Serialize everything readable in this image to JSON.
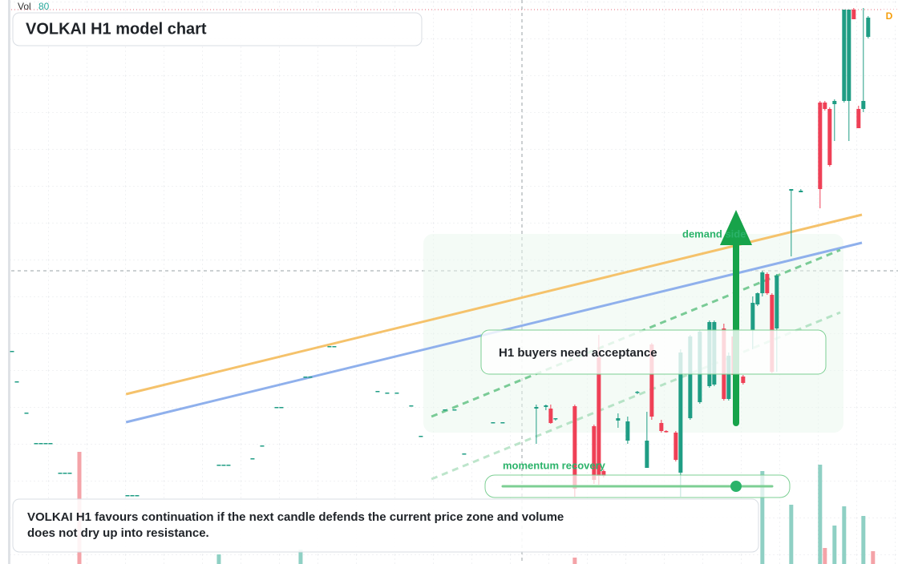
{
  "chart_data": {
    "type": "candlestick",
    "title": "VOLKAI H1 model chart",
    "volume_label": "Vol",
    "volume_value": 80,
    "badge": "D",
    "annotations": {
      "zone": "demand side",
      "box": "H1 buyers need acceptance",
      "slider": "momentum recovery",
      "note": "VOLKAI H1 favours continuation if the next candle defends the current price zone and volume does not dry up into resistance."
    },
    "xlim": [
      -2.5,
      184.2
    ],
    "ylim": [
      0,
      70.4
    ],
    "up_color": "#1f9d84",
    "down_color": "#ef4056",
    "t": [
      0,
      1,
      3,
      5,
      6,
      7,
      8,
      10,
      11,
      12,
      24,
      25,
      26,
      43,
      44,
      45,
      50,
      52,
      55,
      56,
      61,
      62,
      66,
      67,
      76,
      78,
      80,
      83,
      85,
      90,
      92,
      94,
      100,
      102,
      109,
      111,
      112,
      113,
      117,
      121,
      122,
      123,
      126,
      128,
      130,
      132,
      133,
      135,
      136,
      138,
      139,
      141,
      143,
      145,
      146,
      148,
      149,
      150,
      152,
      154,
      155,
      156,
      157,
      158,
      159,
      162,
      164,
      168,
      169,
      170,
      171,
      173,
      174,
      175,
      176,
      177,
      178
    ],
    "open": [
      26.6,
      22.8,
      18.9,
      15.1,
      15.1,
      15.1,
      15.1,
      11.4,
      11.4,
      11.4,
      8.6,
      8.6,
      8.6,
      12.4,
      12.4,
      12.4,
      13.2,
      14.8,
      19.6,
      19.6,
      23.4,
      23.4,
      27.2,
      27.2,
      21.6,
      21.4,
      21.4,
      19.8,
      16.0,
      19.3,
      19.3,
      13.8,
      17.7,
      17.7,
      19.4,
      19.6,
      19.4,
      18.1,
      19.7,
      17.2,
      25.8,
      11.6,
      17.9,
      15.4,
      21.4,
      12.0,
      27.4,
      17.6,
      16.6,
      16.4,
      11.4,
      18.2,
      20.2,
      22.2,
      22.4,
      29.4,
      20.6,
      28.4,
      23.4,
      29.2,
      32.4,
      33.8,
      36.2,
      33.6,
      29.4,
      46.6,
      46.4,
      57.6,
      57.6,
      56.8,
      57.4,
      57.8,
      57.8,
      69.2,
      56.8,
      56.8,
      65.8
    ],
    "high": [
      26.6,
      22.8,
      18.9,
      15.1,
      15.1,
      15.1,
      15.1,
      11.4,
      11.4,
      11.4,
      8.6,
      8.6,
      8.6,
      12.4,
      12.4,
      12.4,
      13.2,
      14.8,
      19.6,
      19.6,
      23.4,
      23.4,
      27.2,
      27.2,
      21.6,
      21.4,
      21.4,
      19.8,
      16.0,
      19.3,
      19.3,
      13.8,
      17.7,
      17.7,
      19.9,
      19.9,
      19.9,
      18.2,
      19.9,
      17.4,
      28.6,
      11.8,
      18.8,
      18.4,
      21.6,
      19.0,
      27.6,
      18.0,
      16.7,
      16.6,
      26.8,
      28.6,
      29.2,
      30.4,
      30.4,
      30.0,
      26.4,
      28.6,
      23.6,
      33.4,
      33.9,
      36.6,
      36.4,
      33.8,
      36.2,
      46.8,
      46.8,
      57.8,
      57.8,
      57.0,
      58.0,
      69.2,
      69.2,
      69.4,
      57.2,
      69.4,
      68.4
    ],
    "low": [
      26.6,
      22.8,
      18.9,
      15.1,
      15.1,
      15.1,
      15.1,
      11.4,
      11.4,
      11.4,
      8.6,
      8.6,
      8.6,
      12.4,
      12.4,
      12.4,
      13.2,
      14.8,
      19.6,
      19.6,
      23.4,
      23.4,
      27.2,
      27.2,
      21.6,
      21.4,
      21.4,
      19.8,
      16.0,
      19.3,
      19.3,
      13.8,
      17.7,
      17.7,
      15.0,
      19.2,
      17.5,
      17.9,
      8.4,
      10.0,
      9.9,
      10.8,
      17.0,
      15.0,
      21.2,
      12.0,
      18.0,
      16.4,
      16.4,
      12.8,
      8.4,
      18.0,
      20.0,
      22.0,
      22.2,
      20.4,
      20.4,
      23.2,
      22.4,
      26.8,
      32.2,
      33.4,
      33.6,
      23.8,
      24.0,
      38.4,
      46.4,
      44.4,
      56.6,
      49.6,
      52.8,
      57.6,
      52.8,
      68.0,
      54.4,
      56.4,
      65.6
    ],
    "close": [
      26.6,
      22.8,
      18.9,
      15.1,
      15.1,
      15.1,
      15.1,
      11.4,
      11.4,
      11.4,
      8.6,
      8.6,
      8.6,
      12.4,
      12.4,
      12.4,
      13.2,
      14.8,
      19.6,
      19.6,
      23.4,
      23.4,
      27.2,
      27.2,
      21.6,
      21.4,
      21.4,
      19.8,
      16.0,
      19.3,
      19.3,
      13.8,
      17.7,
      17.7,
      19.6,
      19.8,
      17.6,
      18.2,
      9.4,
      10.5,
      11.0,
      11.0,
      18.2,
      17.8,
      21.5,
      15.4,
      18.4,
      16.6,
      16.5,
      13.0,
      26.4,
      28.4,
      29.0,
      30.2,
      30.2,
      20.6,
      26.0,
      23.6,
      22.6,
      32.6,
      33.8,
      36.4,
      33.8,
      24.0,
      36.0,
      46.8,
      46.6,
      46.8,
      56.8,
      49.8,
      57.8,
      69.2,
      69.2,
      68.0,
      54.4,
      57.8,
      68.2
    ],
    "volume": {
      "t": [
        14,
        43,
        60,
        117,
        156,
        162,
        168,
        169,
        171,
        173,
        177,
        179
      ],
      "values": [
        140,
        12,
        18,
        8,
        116,
        74,
        124,
        20,
        48,
        72,
        60,
        16
      ],
      "colors": [
        "#f4a3a8",
        "#8fd0c4",
        "#8fd0c4",
        "#f4a3a8",
        "#8fd0c4",
        "#8fd0c4",
        "#8fd0c4",
        "#f4a3a8",
        "#8fd0c4",
        "#8fd0c4",
        "#8fd0c4",
        "#f4a3a8"
      ],
      "vlim": [
        0,
        704
      ]
    },
    "lines": [
      {
        "color": "#f5c26b",
        "from": [
          23.7,
          21.2
        ],
        "to": [
          176.7,
          43.6
        ],
        "dash": false,
        "opacity": 1
      },
      {
        "color": "#8fb0ec",
        "from": [
          23.7,
          17.7
        ],
        "to": [
          176.7,
          40.1
        ],
        "dash": false,
        "opacity": 1
      },
      {
        "color": "#5cc07f",
        "from": [
          87.2,
          18.4
        ],
        "to": [
          172.2,
          39.2
        ],
        "dash": true,
        "opacity": 0.8
      },
      {
        "color": "#5cc07f",
        "from": [
          87.2,
          10.6
        ],
        "to": [
          172.2,
          31.4
        ],
        "dash": true,
        "opacity": 0.4
      }
    ]
  }
}
